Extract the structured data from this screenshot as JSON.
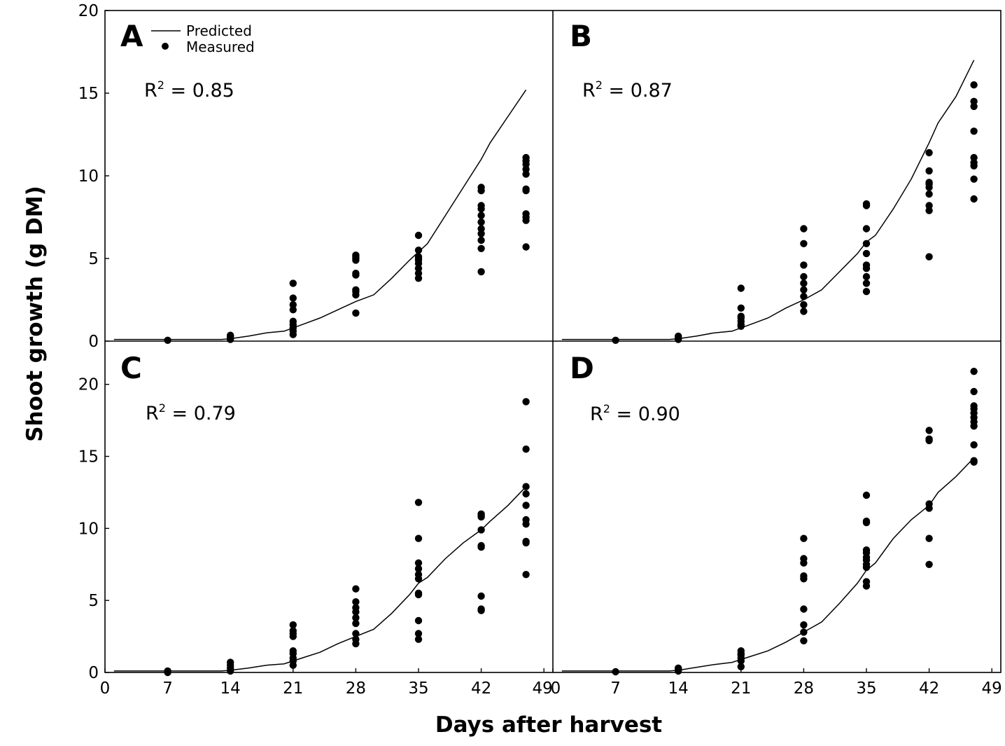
{
  "figure": {
    "xlabel": "Days after harvest",
    "ylabel": "Shoot growth (g DM)"
  },
  "legend": {
    "predicted_label": "Predicted",
    "measured_label": "Measured"
  },
  "chart_data": [
    {
      "type": "scatter",
      "panel": "A",
      "r2_label": "R",
      "r2_sup": "2",
      "r2_value": " = 0.85",
      "xlim": [
        0,
        50
      ],
      "ylim": [
        0,
        20
      ],
      "xticks": [
        0,
        7,
        14,
        21,
        28,
        35,
        42,
        49
      ],
      "yticks": [
        0,
        5,
        10,
        15,
        20
      ],
      "series": [
        {
          "name": "Predicted",
          "kind": "line",
          "x": [
            1,
            7,
            10,
            13,
            14,
            16,
            18,
            20,
            22,
            24,
            26,
            28,
            30,
            32,
            34,
            35,
            36,
            38,
            40,
            42,
            43,
            45,
            47
          ],
          "y": [
            0.1,
            0.1,
            0.1,
            0.1,
            0.15,
            0.3,
            0.5,
            0.6,
            1.0,
            1.4,
            1.9,
            2.4,
            2.8,
            3.8,
            4.9,
            5.4,
            5.9,
            7.6,
            9.3,
            11.0,
            12.0,
            13.6,
            15.2
          ]
        },
        {
          "name": "Measured",
          "kind": "points",
          "x": [
            7,
            14,
            14,
            14,
            14,
            21,
            21,
            21,
            21,
            21,
            21,
            21,
            21,
            21,
            28,
            28,
            28,
            28,
            28,
            28,
            28,
            28,
            28,
            28,
            35,
            35,
            35,
            35,
            35,
            35,
            35,
            35,
            35,
            42,
            42,
            42,
            42,
            42,
            42,
            42,
            42,
            42,
            42,
            42,
            47,
            47,
            47,
            47,
            47,
            47,
            47,
            47,
            47,
            47,
            47
          ],
          "y": [
            0.05,
            0.1,
            0.2,
            0.3,
            0.35,
            0.4,
            0.6,
            0.8,
            1.0,
            1.2,
            1.9,
            2.2,
            2.6,
            3.5,
            1.7,
            2.8,
            3.0,
            3.1,
            4.0,
            4.1,
            4.9,
            5.0,
            5.1,
            5.2,
            3.8,
            4.1,
            4.4,
            4.7,
            4.9,
            5.0,
            5.1,
            5.5,
            6.4,
            4.2,
            5.6,
            6.1,
            6.5,
            6.8,
            7.2,
            7.6,
            8.0,
            8.2,
            9.1,
            9.3,
            5.7,
            7.3,
            7.5,
            7.7,
            9.1,
            9.2,
            10.1,
            10.4,
            10.7,
            10.9,
            11.1
          ]
        }
      ]
    },
    {
      "type": "scatter",
      "panel": "B",
      "r2_label": "R",
      "r2_sup": "2",
      "r2_value": " = 0.87",
      "xlim": [
        0,
        50
      ],
      "ylim": [
        0,
        20
      ],
      "xticks": [
        0,
        7,
        14,
        21,
        28,
        35,
        42,
        49
      ],
      "yticks": [
        0,
        5,
        10,
        15,
        20
      ],
      "series": [
        {
          "name": "Predicted",
          "kind": "line",
          "x": [
            1,
            7,
            10,
            13,
            14,
            16,
            18,
            20,
            22,
            24,
            26,
            28,
            30,
            32,
            34,
            35,
            36,
            38,
            40,
            42,
            43,
            45,
            47
          ],
          "y": [
            0.1,
            0.1,
            0.1,
            0.1,
            0.15,
            0.3,
            0.5,
            0.6,
            1.0,
            1.4,
            2.0,
            2.5,
            3.1,
            4.2,
            5.3,
            6.0,
            6.4,
            8.0,
            9.8,
            12.0,
            13.2,
            14.8,
            17.0
          ]
        },
        {
          "name": "Measured",
          "kind": "points",
          "x": [
            7,
            14,
            14,
            14,
            21,
            21,
            21,
            21,
            21,
            21,
            21,
            28,
            28,
            28,
            28,
            28,
            28,
            28,
            28,
            28,
            35,
            35,
            35,
            35,
            35,
            35,
            35,
            35,
            35,
            35,
            42,
            42,
            42,
            42,
            42,
            42,
            42,
            42,
            42,
            47,
            47,
            47,
            47,
            47,
            47,
            47,
            47,
            47
          ],
          "y": [
            0.05,
            0.1,
            0.2,
            0.3,
            0.9,
            1.0,
            1.2,
            1.4,
            1.5,
            2.0,
            3.2,
            1.8,
            2.2,
            2.7,
            3.1,
            3.5,
            3.9,
            4.6,
            5.9,
            6.8,
            3.0,
            3.5,
            3.9,
            4.4,
            4.6,
            5.3,
            5.9,
            6.8,
            8.2,
            8.3,
            5.1,
            7.9,
            8.2,
            8.9,
            9.3,
            9.5,
            9.6,
            10.3,
            11.4,
            8.6,
            9.8,
            10.6,
            10.8,
            11.1,
            12.7,
            14.2,
            14.5,
            15.5
          ]
        }
      ]
    },
    {
      "type": "scatter",
      "panel": "C",
      "r2_label": "R",
      "r2_sup": "2",
      "r2_value": " = 0.79",
      "xlim": [
        0,
        50
      ],
      "ylim": [
        0,
        23
      ],
      "xticks": [
        0,
        7,
        14,
        21,
        28,
        35,
        42,
        49
      ],
      "yticks": [
        0,
        5,
        10,
        15,
        20
      ],
      "series": [
        {
          "name": "Predicted",
          "kind": "line",
          "x": [
            1,
            7,
            10,
            13,
            14,
            16,
            18,
            20,
            22,
            24,
            26,
            28,
            30,
            32,
            34,
            35,
            36,
            38,
            40,
            42,
            43,
            45,
            47
          ],
          "y": [
            0.1,
            0.1,
            0.1,
            0.1,
            0.15,
            0.3,
            0.5,
            0.6,
            1.0,
            1.4,
            2.0,
            2.5,
            3.0,
            4.1,
            5.4,
            6.2,
            6.6,
            7.9,
            9.0,
            9.9,
            10.5,
            11.6,
            12.9
          ]
        },
        {
          "name": "Measured",
          "kind": "points",
          "x": [
            7,
            7,
            14,
            14,
            14,
            14,
            21,
            21,
            21,
            21,
            21,
            21,
            21,
            21,
            21,
            28,
            28,
            28,
            28,
            28,
            28,
            28,
            28,
            28,
            35,
            35,
            35,
            35,
            35,
            35,
            35,
            35,
            35,
            35,
            35,
            42,
            42,
            42,
            42,
            42,
            42,
            42,
            42,
            42,
            47,
            47,
            47,
            47,
            47,
            47,
            47,
            47,
            47,
            47
          ],
          "y": [
            0.0,
            0.1,
            0.1,
            0.3,
            0.5,
            0.7,
            0.5,
            0.8,
            1.0,
            1.3,
            1.5,
            2.5,
            2.7,
            2.9,
            3.3,
            2.0,
            2.3,
            2.7,
            3.4,
            3.8,
            4.2,
            4.5,
            4.9,
            5.8,
            2.3,
            2.7,
            3.6,
            5.4,
            5.5,
            6.5,
            6.8,
            7.2,
            7.6,
            9.3,
            11.8,
            4.3,
            4.4,
            5.3,
            8.7,
            8.8,
            9.9,
            10.8,
            10.9,
            11.0,
            6.8,
            9.0,
            9.1,
            10.3,
            10.6,
            11.6,
            12.4,
            12.9,
            15.5,
            18.8
          ]
        }
      ]
    },
    {
      "type": "scatter",
      "panel": "D",
      "r2_label": "R",
      "r2_sup": "2",
      "r2_value": " = 0.90",
      "xlim": [
        0,
        50
      ],
      "ylim": [
        0,
        23
      ],
      "xticks": [
        0,
        7,
        14,
        21,
        28,
        35,
        42,
        49
      ],
      "yticks": [
        0,
        5,
        10,
        15,
        20
      ],
      "series": [
        {
          "name": "Predicted",
          "kind": "line",
          "x": [
            1,
            7,
            10,
            13,
            14,
            16,
            18,
            20,
            22,
            24,
            26,
            28,
            30,
            32,
            34,
            35,
            36,
            38,
            40,
            42,
            43,
            45,
            47
          ],
          "y": [
            0.1,
            0.1,
            0.1,
            0.1,
            0.15,
            0.35,
            0.55,
            0.7,
            1.1,
            1.5,
            2.1,
            2.8,
            3.5,
            4.8,
            6.2,
            7.1,
            7.6,
            9.3,
            10.6,
            11.6,
            12.5,
            13.6,
            14.9
          ]
        },
        {
          "name": "Measured",
          "kind": "points",
          "x": [
            7,
            14,
            14,
            14,
            21,
            21,
            21,
            21,
            21,
            21,
            28,
            28,
            28,
            28,
            28,
            28,
            28,
            28,
            28,
            35,
            35,
            35,
            35,
            35,
            35,
            35,
            35,
            35,
            35,
            35,
            42,
            42,
            42,
            42,
            42,
            42,
            42,
            47,
            47,
            47,
            47,
            47,
            47,
            47,
            47,
            47,
            47,
            47
          ],
          "y": [
            0.05,
            0.1,
            0.2,
            0.3,
            0.4,
            0.8,
            1.0,
            1.2,
            1.3,
            1.5,
            2.2,
            2.8,
            3.3,
            4.4,
            6.5,
            6.7,
            7.6,
            7.9,
            9.3,
            6.0,
            6.3,
            7.3,
            7.5,
            7.8,
            8.0,
            8.3,
            8.5,
            10.4,
            10.5,
            12.3,
            7.5,
            9.3,
            11.4,
            11.7,
            16.1,
            16.2,
            16.8,
            14.6,
            14.7,
            15.8,
            17.1,
            17.4,
            17.7,
            18.0,
            18.3,
            18.5,
            19.5,
            20.9
          ]
        }
      ]
    }
  ]
}
